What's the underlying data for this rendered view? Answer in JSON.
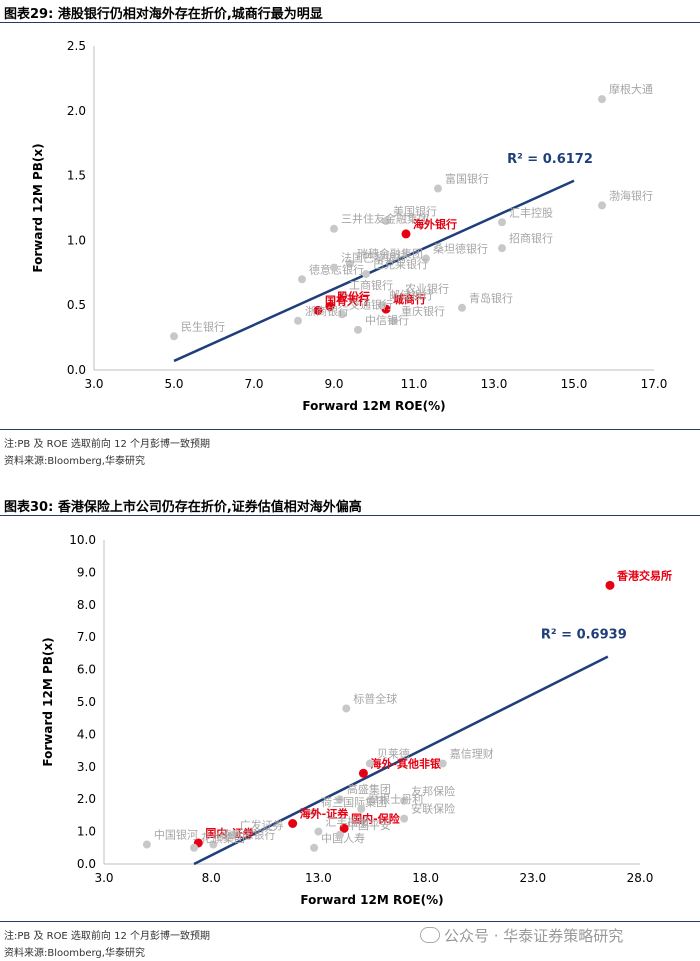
{
  "figure1": {
    "title": "图表29:  港股银行仍相对海外存在折价,城商行最为明显",
    "note": "注:PB 及 ROE 选取前向 12 个月彭博一致预期",
    "source": "资料来源:Bloomberg,华泰研究"
  },
  "figure2": {
    "title": "图表30:  香港保险上市公司仍存在折价,证券估值相对海外偏高",
    "note": "注:PB 及 ROE 选取前向 12 个月彭博一致预期",
    "source": "资料来源:Bloomberg,华泰研究"
  },
  "watermark": "公众号 · 华泰证券策略研究",
  "colors": {
    "gray_point": "#c8c8c8",
    "red_point": "#e60012",
    "trend": "#1f3f7a",
    "label_gray": "#a6a6a6",
    "label_red": "#e60012"
  },
  "chart_data": [
    {
      "type": "scatter",
      "xlabel": "Forward 12M ROE(%)",
      "ylabel": "Forward 12M PB(x)",
      "xlim": [
        3.0,
        17.0
      ],
      "ylim": [
        0.0,
        2.5
      ],
      "xticks": [
        "3.0",
        "5.0",
        "7.0",
        "9.0",
        "11.0",
        "13.0",
        "15.0",
        "17.0"
      ],
      "yticks": [
        "0.0",
        "0.5",
        "1.0",
        "1.5",
        "2.0",
        "2.5"
      ],
      "r2_label": "R² = 0.6172",
      "trendline": {
        "x": [
          5.0,
          15.0
        ],
        "y": [
          0.07,
          1.46
        ]
      },
      "points": [
        {
          "name": "摩根大通",
          "x": 15.7,
          "y": 2.09,
          "highlight": false
        },
        {
          "name": "渤海银行",
          "x": 15.7,
          "y": 1.27,
          "highlight": false
        },
        {
          "name": "富国银行",
          "x": 11.6,
          "y": 1.4,
          "highlight": false
        },
        {
          "name": "汇丰控股",
          "x": 13.2,
          "y": 1.14,
          "highlight": false
        },
        {
          "name": "美国银行",
          "x": 10.3,
          "y": 1.15,
          "highlight": false
        },
        {
          "name": "三井住友金融集团",
          "x": 9.0,
          "y": 1.09,
          "highlight": false
        },
        {
          "name": "海外银行",
          "x": 10.8,
          "y": 1.05,
          "highlight": true
        },
        {
          "name": "瑞穗金融集团",
          "x": 9.4,
          "y": 0.82,
          "highlight": false
        },
        {
          "name": "招商银行",
          "x": 13.2,
          "y": 0.94,
          "highlight": false
        },
        {
          "name": "桑坦德银行",
          "x": 11.3,
          "y": 0.86,
          "highlight": false
        },
        {
          "name": "德意志银行",
          "x": 8.2,
          "y": 0.7,
          "highlight": false
        },
        {
          "name": "法国巴黎银行",
          "x": 9.0,
          "y": 0.79,
          "highlight": false
        },
        {
          "name": "巴克莱银行",
          "x": 9.8,
          "y": 0.74,
          "highlight": false
        },
        {
          "name": "工商银行",
          "x": 9.2,
          "y": 0.58,
          "highlight": false
        },
        {
          "name": "农业银行",
          "x": 10.6,
          "y": 0.55,
          "highlight": false
        },
        {
          "name": "国有大行",
          "x": 8.6,
          "y": 0.46,
          "highlight": true
        },
        {
          "name": "股份行",
          "x": 8.9,
          "y": 0.49,
          "highlight": true
        },
        {
          "name": "城商行",
          "x": 10.3,
          "y": 0.47,
          "highlight": true
        },
        {
          "name": "邮储银行",
          "x": 10.2,
          "y": 0.5,
          "highlight": false
        },
        {
          "name": "青岛银行",
          "x": 12.2,
          "y": 0.48,
          "highlight": false
        },
        {
          "name": "交通银行",
          "x": 9.2,
          "y": 0.43,
          "highlight": false
        },
        {
          "name": "重庆银行",
          "x": 10.5,
          "y": 0.38,
          "highlight": false
        },
        {
          "name": "民生银行",
          "x": 5.0,
          "y": 0.26,
          "highlight": false
        },
        {
          "name": "浙商银行",
          "x": 8.1,
          "y": 0.38,
          "highlight": false
        },
        {
          "name": "中信银行",
          "x": 9.6,
          "y": 0.31,
          "highlight": false
        }
      ]
    },
    {
      "type": "scatter",
      "xlabel": "Forward 12M ROE(%)",
      "ylabel": "Forward 12M PB(x)",
      "xlim": [
        3.0,
        28.0
      ],
      "ylim": [
        0.0,
        10.0
      ],
      "xticks": [
        "3.0",
        "8.0",
        "13.0",
        "18.0",
        "23.0",
        "28.0"
      ],
      "yticks": [
        "0.0",
        "1.0",
        "2.0",
        "3.0",
        "4.0",
        "5.0",
        "6.0",
        "7.0",
        "8.0",
        "9.0",
        "10.0"
      ],
      "r2_label": "R² = 0.6939",
      "trendline": {
        "x": [
          7.2,
          26.5
        ],
        "y": [
          0.0,
          6.4
        ]
      },
      "points": [
        {
          "name": "香港交易所",
          "x": 26.6,
          "y": 8.6,
          "highlight": true
        },
        {
          "name": "标普全球",
          "x": 14.3,
          "y": 4.8,
          "highlight": false
        },
        {
          "name": "海外-其他非银",
          "x": 15.1,
          "y": 2.8,
          "highlight": true
        },
        {
          "name": "贝莱德",
          "x": 15.4,
          "y": 3.1,
          "highlight": false
        },
        {
          "name": "嘉信理财",
          "x": 18.8,
          "y": 3.1,
          "highlight": false
        },
        {
          "name": "友邦保险",
          "x": 17.0,
          "y": 1.95,
          "highlight": false
        },
        {
          "name": "高盛集团",
          "x": 14.0,
          "y": 2.0,
          "highlight": false
        },
        {
          "name": "荷兰国际集团",
          "x": 12.8,
          "y": 1.6,
          "highlight": false
        },
        {
          "name": "摩根士丹利",
          "x": 15.0,
          "y": 1.7,
          "highlight": false
        },
        {
          "name": "安联保险",
          "x": 17.0,
          "y": 1.4,
          "highlight": false
        },
        {
          "name": "海外-证券",
          "x": 11.8,
          "y": 1.25,
          "highlight": true
        },
        {
          "name": "国内-保险",
          "x": 14.2,
          "y": 1.1,
          "highlight": true
        },
        {
          "name": "汇丰控股",
          "x": 13.0,
          "y": 1.0,
          "highlight": false
        },
        {
          "name": "国内-证券",
          "x": 7.4,
          "y": 0.65,
          "highlight": true
        },
        {
          "name": "中国银河",
          "x": 5.0,
          "y": 0.6,
          "highlight": false
        },
        {
          "name": "广发证券",
          "x": 9.0,
          "y": 0.9,
          "highlight": false
        },
        {
          "name": "德意志银行",
          "x": 8.1,
          "y": 0.6,
          "highlight": false
        },
        {
          "name": "中国人寿",
          "x": 12.8,
          "y": 0.5,
          "highlight": false
        },
        {
          "name": "中国平安",
          "x": 14.0,
          "y": 0.9,
          "highlight": false
        },
        {
          "name": "花旗集团",
          "x": 7.2,
          "y": 0.5,
          "highlight": false
        }
      ]
    }
  ]
}
